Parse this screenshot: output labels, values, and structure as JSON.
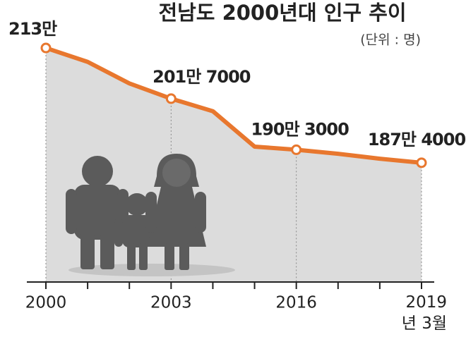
{
  "chart_data": {
    "type": "line",
    "title": "전남도 2000년대 인구 추이",
    "subtitle": "(단위 : 명)",
    "categories": [
      "2000",
      null,
      null,
      "2003",
      null,
      null,
      "2016",
      null,
      null,
      "2019년 3월"
    ],
    "values": [
      2130000,
      2099000,
      2051000,
      2017000,
      1989000,
      1910000,
      1903000,
      1894000,
      1883000,
      1874000
    ],
    "value_labels": [
      "213만",
      null,
      null,
      "201만 7000",
      null,
      null,
      "190만 3000",
      null,
      null,
      "187만 4000"
    ],
    "color": "#e8772e",
    "area_color": "#dcdcdc",
    "ylim": [
      1608000,
      2237000
    ]
  }
}
